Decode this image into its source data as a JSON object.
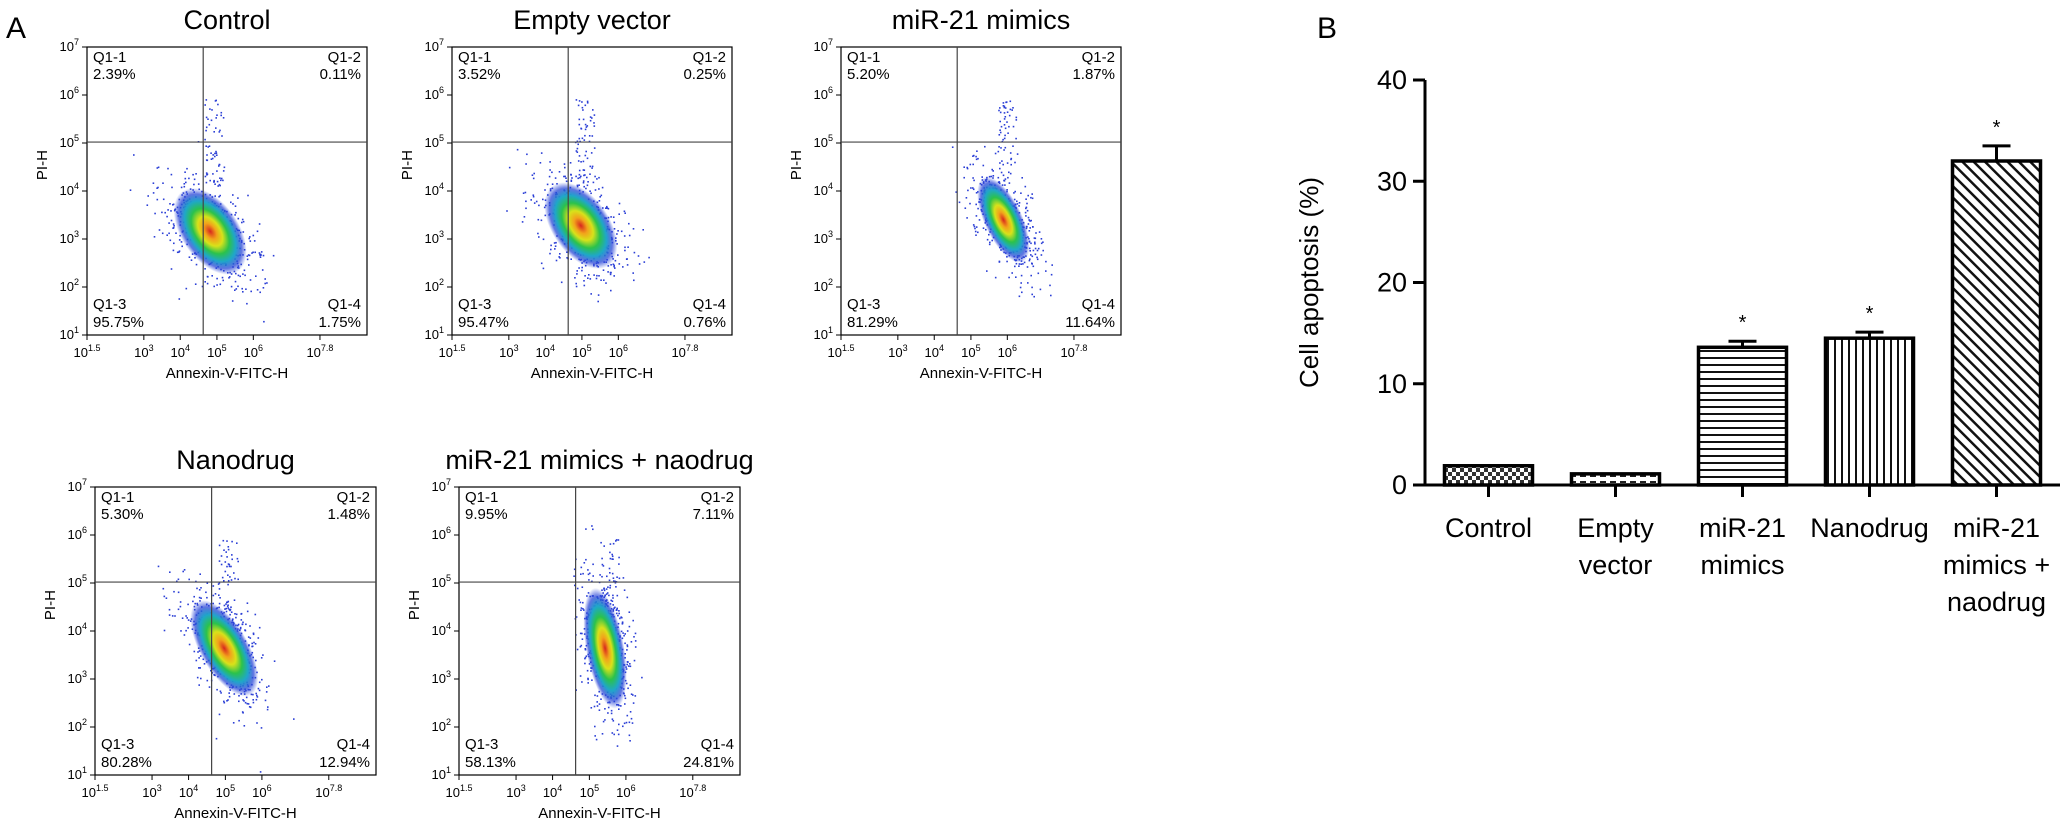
{
  "panel_a": {
    "letter": "A",
    "plots": [
      {
        "title": "Control",
        "q1": {
          "label": "Q1-1",
          "value": "2.39%"
        },
        "q2": {
          "label": "Q1-2",
          "value": "0.11%"
        },
        "q3": {
          "label": "Q1-3",
          "value": "95.75%"
        },
        "q4": {
          "label": "Q1-4",
          "value": "1.75%"
        }
      },
      {
        "title": "Empty vector",
        "q1": {
          "label": "Q1-1",
          "value": "3.52%"
        },
        "q2": {
          "label": "Q1-2",
          "value": "0.25%"
        },
        "q3": {
          "label": "Q1-3",
          "value": "95.47%"
        },
        "q4": {
          "label": "Q1-4",
          "value": "0.76%"
        }
      },
      {
        "title": "miR-21 mimics",
        "q1": {
          "label": "Q1-1",
          "value": "5.20%"
        },
        "q2": {
          "label": "Q1-2",
          "value": "1.87%"
        },
        "q3": {
          "label": "Q1-3",
          "value": "81.29%"
        },
        "q4": {
          "label": "Q1-4",
          "value": "11.64%"
        }
      },
      {
        "title": "Nanodrug",
        "q1": {
          "label": "Q1-1",
          "value": "5.30%"
        },
        "q2": {
          "label": "Q1-2",
          "value": "1.48%"
        },
        "q3": {
          "label": "Q1-3",
          "value": "80.28%"
        },
        "q4": {
          "label": "Q1-4",
          "value": "12.94%"
        }
      },
      {
        "title": "miR-21 mimics + naodrug",
        "q1": {
          "label": "Q1-1",
          "value": "9.95%"
        },
        "q2": {
          "label": "Q1-2",
          "value": "7.11%"
        },
        "q3": {
          "label": "Q1-3",
          "value": "58.13%"
        },
        "q4": {
          "label": "Q1-4",
          "value": "24.81%"
        }
      }
    ],
    "xlabel": "Annexin-V-FITC-H",
    "ylabel": "PI-H",
    "x_ticks": [
      {
        "base": "10",
        "exp": "1.5"
      },
      {
        "base": "10",
        "exp": "3"
      },
      {
        "base": "10",
        "exp": "4"
      },
      {
        "base": "10",
        "exp": "5"
      },
      {
        "base": "10",
        "exp": "6"
      },
      {
        "base": "10",
        "exp": "7.8"
      }
    ],
    "y_ticks": [
      {
        "base": "10",
        "exp": "1"
      },
      {
        "base": "10",
        "exp": "2"
      },
      {
        "base": "10",
        "exp": "3"
      },
      {
        "base": "10",
        "exp": "4"
      },
      {
        "base": "10",
        "exp": "5"
      },
      {
        "base": "10",
        "exp": "6"
      },
      {
        "base": "10",
        "exp": "7"
      }
    ]
  },
  "chart_data": {
    "type": "bar",
    "letter": "B",
    "categories": [
      [
        "Control"
      ],
      [
        "Empty",
        "vector"
      ],
      [
        "miR-21",
        "mimics"
      ],
      [
        "Nanodrug"
      ],
      [
        "miR-21",
        "mimics +",
        "naodrug"
      ]
    ],
    "values": [
      1.9,
      1.1,
      13.6,
      14.5,
      32.0
    ],
    "errors": [
      0,
      0,
      0.6,
      0.6,
      1.5
    ],
    "significance": [
      "",
      "",
      "*",
      "*",
      "*"
    ],
    "patterns": [
      "checker",
      "dash",
      "hstripe",
      "vstripe",
      "diag"
    ],
    "ylabel": "Cell apoptosis (%)",
    "ylim": [
      0,
      40
    ],
    "yticks": [
      0,
      10,
      20,
      30,
      40
    ],
    "grid": false
  }
}
